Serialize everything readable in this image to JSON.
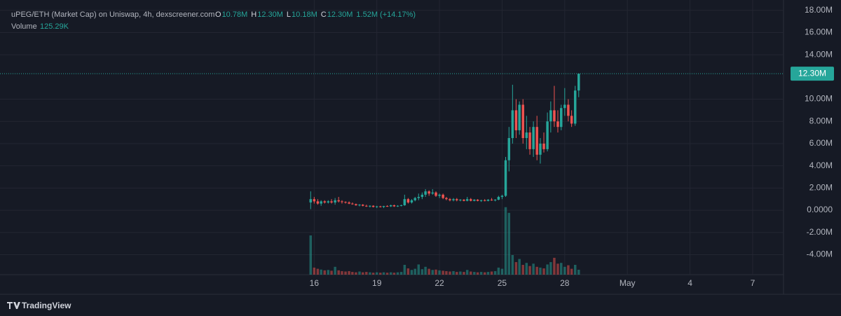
{
  "chart_data": {
    "type": "candlestick",
    "title": "uPEG/ETH (Market Cap) on Uniswap, 4h, dexscreener.com",
    "ohlc_legend": [
      {
        "label": "O",
        "value": "10.78M"
      },
      {
        "label": "H",
        "value": "12.30M"
      },
      {
        "label": "L",
        "value": "10.18M"
      },
      {
        "label": "C",
        "value": "12.30M"
      }
    ],
    "change": "1.52M (+14.17%)",
    "volume_label": "Volume",
    "volume_value": "125.29K",
    "brand": "TradingView",
    "up_color": "#26a69a",
    "down_color": "#ef5350",
    "grid": true,
    "xlim": [
      0.95,
      38.48
    ],
    "xticks": [
      16,
      19,
      22,
      25,
      28,
      {
        "value": 31,
        "label": "May"
      },
      {
        "value": 34,
        "label": "4"
      },
      {
        "value": 37,
        "label": "7"
      }
    ],
    "ylim": [
      -5.8,
      18.93
    ],
    "yticks": [
      {
        "value": 18,
        "label": "18.00M"
      },
      {
        "value": 16,
        "label": "16.00M"
      },
      {
        "value": 14,
        "label": "14.00M"
      },
      {
        "value": 10,
        "label": "10.00M"
      },
      {
        "value": 8,
        "label": "8.00M"
      },
      {
        "value": 6,
        "label": "6.00M"
      },
      {
        "value": 4,
        "label": "4.00M"
      },
      {
        "value": 2,
        "label": "2.00M"
      },
      {
        "value": 0,
        "label": "0.0000"
      },
      {
        "value": -2,
        "label": "-2.00M"
      },
      {
        "value": -4,
        "label": "-4.00M"
      }
    ],
    "last_price": {
      "value": 12.3,
      "label": "12.30M"
    },
    "volume_ylim": [
      0,
      7000
    ],
    "x": [
      15.83,
      16,
      16.17,
      16.33,
      16.5,
      16.67,
      16.83,
      17,
      17.17,
      17.33,
      17.5,
      17.67,
      17.83,
      18,
      18.17,
      18.33,
      18.5,
      18.67,
      18.83,
      19,
      19.17,
      19.33,
      19.5,
      19.67,
      19.83,
      20,
      20.17,
      20.33,
      20.5,
      20.67,
      20.83,
      21,
      21.17,
      21.33,
      21.5,
      21.67,
      21.83,
      22,
      22.17,
      22.33,
      22.5,
      22.67,
      22.83,
      23,
      23.17,
      23.33,
      23.5,
      23.67,
      23.83,
      24,
      24.17,
      24.33,
      24.5,
      24.67,
      24.83,
      25,
      25.17,
      25.33,
      25.5,
      25.67,
      25.83,
      26,
      26.17,
      26.33,
      26.5,
      26.67,
      26.83,
      27,
      27.17,
      27.33,
      27.5,
      27.67,
      27.83,
      28,
      28.17,
      28.33,
      28.5,
      28.67
    ],
    "ohlc": [
      [
        0.7,
        1.7,
        0.1,
        1.0
      ],
      [
        1.0,
        1.2,
        0.6,
        0.8
      ],
      [
        0.8,
        1.0,
        0.5,
        0.6
      ],
      [
        0.6,
        0.9,
        0.4,
        0.8
      ],
      [
        0.8,
        0.9,
        0.6,
        0.7
      ],
      [
        0.7,
        0.9,
        0.6,
        0.8
      ],
      [
        0.8,
        1.0,
        0.6,
        0.7
      ],
      [
        0.7,
        1.1,
        0.5,
        0.9
      ],
      [
        0.9,
        1.2,
        0.7,
        0.8
      ],
      [
        0.8,
        0.9,
        0.6,
        0.75
      ],
      [
        0.75,
        0.8,
        0.6,
        0.7
      ],
      [
        0.7,
        0.8,
        0.55,
        0.6
      ],
      [
        0.6,
        0.7,
        0.5,
        0.55
      ],
      [
        0.55,
        0.6,
        0.4,
        0.45
      ],
      [
        0.45,
        0.55,
        0.35,
        0.5
      ],
      [
        0.5,
        0.55,
        0.35,
        0.4
      ],
      [
        0.4,
        0.5,
        0.3,
        0.35
      ],
      [
        0.35,
        0.45,
        0.25,
        0.4
      ],
      [
        0.4,
        0.45,
        0.25,
        0.3
      ],
      [
        0.3,
        0.4,
        0.2,
        0.35
      ],
      [
        0.35,
        0.4,
        0.25,
        0.3
      ],
      [
        0.3,
        0.4,
        0.2,
        0.38
      ],
      [
        0.38,
        0.45,
        0.3,
        0.35
      ],
      [
        0.35,
        0.5,
        0.3,
        0.45
      ],
      [
        0.45,
        0.5,
        0.3,
        0.35
      ],
      [
        0.35,
        0.45,
        0.3,
        0.4
      ],
      [
        0.4,
        0.5,
        0.35,
        0.45
      ],
      [
        0.45,
        1.4,
        0.4,
        1.0
      ],
      [
        1.0,
        1.1,
        0.6,
        0.7
      ],
      [
        0.7,
        1.0,
        0.6,
        0.9
      ],
      [
        0.9,
        1.2,
        0.8,
        1.1
      ],
      [
        1.1,
        1.5,
        0.9,
        1.2
      ],
      [
        1.2,
        1.6,
        1.0,
        1.4
      ],
      [
        1.4,
        1.9,
        1.2,
        1.7
      ],
      [
        1.7,
        1.8,
        1.3,
        1.5
      ],
      [
        1.5,
        1.9,
        1.4,
        1.6
      ],
      [
        1.6,
        1.7,
        1.2,
        1.3
      ],
      [
        1.3,
        1.5,
        1.1,
        1.4
      ],
      [
        1.4,
        1.5,
        1.0,
        1.1
      ],
      [
        1.1,
        1.2,
        0.9,
        1.0
      ],
      [
        1.0,
        1.1,
        0.8,
        0.9
      ],
      [
        0.9,
        1.1,
        0.8,
        1.0
      ],
      [
        1.0,
        1.1,
        0.8,
        0.9
      ],
      [
        0.9,
        1.0,
        0.8,
        0.95
      ],
      [
        0.95,
        1.0,
        0.8,
        0.85
      ],
      [
        0.85,
        1.2,
        0.8,
        1.0
      ],
      [
        1.0,
        1.1,
        0.8,
        0.85
      ],
      [
        0.85,
        1.0,
        0.8,
        0.95
      ],
      [
        0.95,
        1.0,
        0.8,
        0.85
      ],
      [
        0.85,
        0.95,
        0.75,
        0.9
      ],
      [
        0.9,
        1.0,
        0.8,
        0.85
      ],
      [
        0.85,
        1.0,
        0.8,
        0.95
      ],
      [
        0.95,
        1.1,
        0.85,
        0.9
      ],
      [
        0.9,
        1.0,
        0.8,
        0.95
      ],
      [
        0.95,
        1.3,
        0.9,
        1.2
      ],
      [
        1.2,
        1.4,
        1.0,
        1.3
      ],
      [
        1.3,
        4.8,
        1.2,
        4.5
      ],
      [
        4.5,
        7.5,
        3.5,
        6.5
      ],
      [
        6.5,
        11.3,
        6.0,
        9.0
      ],
      [
        9.0,
        10.0,
        6.5,
        7.2
      ],
      [
        7.2,
        9.8,
        6.8,
        9.5
      ],
      [
        9.5,
        10.0,
        6.0,
        6.5
      ],
      [
        6.5,
        8.5,
        5.5,
        7.0
      ],
      [
        7.0,
        7.5,
        5.0,
        5.5
      ],
      [
        5.5,
        8.0,
        4.8,
        7.5
      ],
      [
        7.5,
        8.5,
        4.5,
        5.0
      ],
      [
        5.0,
        6.5,
        4.2,
        6.0
      ],
      [
        6.0,
        7.0,
        5.2,
        5.5
      ],
      [
        5.5,
        8.8,
        5.3,
        8.0
      ],
      [
        8.0,
        9.8,
        7.0,
        9.0
      ],
      [
        9.0,
        11.2,
        7.5,
        8.0
      ],
      [
        8.0,
        9.0,
        7.0,
        7.5
      ],
      [
        7.5,
        9.5,
        7.2,
        9.2
      ],
      [
        9.2,
        11.0,
        8.5,
        9.5
      ],
      [
        9.5,
        10.0,
        8.0,
        8.5
      ],
      [
        8.5,
        9.0,
        7.5,
        7.8
      ],
      [
        7.8,
        11.2,
        7.6,
        10.78
      ],
      [
        10.78,
        12.3,
        10.18,
        12.3
      ]
    ],
    "volume": [
      1000,
      180,
      150,
      130,
      110,
      120,
      100,
      200,
      110,
      90,
      80,
      90,
      70,
      60,
      80,
      60,
      70,
      60,
      50,
      60,
      50,
      60,
      50,
      60,
      50,
      60,
      70,
      250,
      160,
      120,
      150,
      260,
      140,
      200,
      150,
      120,
      130,
      110,
      100,
      90,
      80,
      90,
      70,
      80,
      70,
      120,
      80,
      70,
      60,
      70,
      60,
      70,
      80,
      90,
      180,
      150,
      1720,
      1575,
      500,
      320,
      400,
      250,
      300,
      220,
      280,
      200,
      180,
      160,
      260,
      320,
      430,
      280,
      300,
      200,
      240,
      150,
      250,
      125.29
    ]
  }
}
